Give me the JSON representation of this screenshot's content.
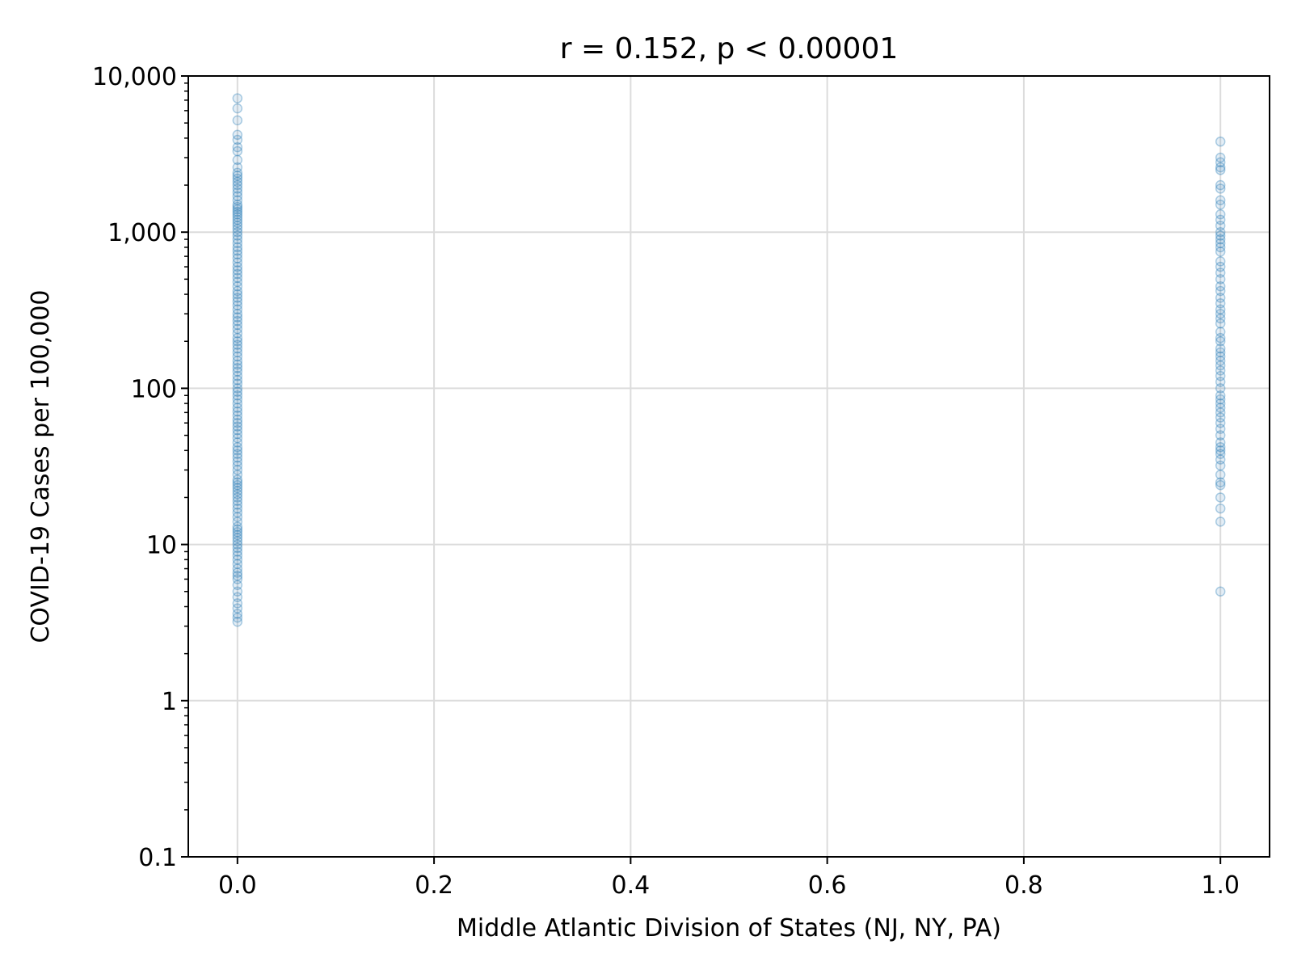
{
  "chart_data": {
    "type": "scatter",
    "title": "r = 0.152, p < 0.00001",
    "xlabel": "Middle Atlantic Division of States (NJ, NY, PA)",
    "ylabel": "COVID-19 Cases per 100,000",
    "xlim": [
      -0.05,
      1.05
    ],
    "ylim": [
      0.1,
      10000
    ],
    "yscale": "log",
    "grid": true,
    "x_ticks": [
      0.0,
      0.2,
      0.4,
      0.6,
      0.8,
      1.0
    ],
    "x_tick_labels": [
      "0.0",
      "0.2",
      "0.4",
      "0.6",
      "0.8",
      "1.0"
    ],
    "y_ticks": [
      0.1,
      1,
      10,
      100,
      1000,
      10000
    ],
    "y_tick_labels": [
      "0.1",
      "1",
      "10",
      "100",
      "1,000",
      "10,000"
    ],
    "colors": {
      "points": "#1f77b4",
      "grid": "#dcdcdc",
      "axes": "#000000"
    },
    "series": [
      {
        "x_group": 0,
        "values": [
          7200,
          6200,
          5200,
          4200,
          3900,
          3500,
          3300,
          2900,
          2600,
          2400,
          2300,
          2200,
          2100,
          2000,
          1900,
          1800,
          1700,
          1600,
          1500,
          1450,
          1400,
          1350,
          1300,
          1250,
          1200,
          1150,
          1100,
          1050,
          1000,
          950,
          900,
          850,
          800,
          760,
          720,
          680,
          640,
          600,
          570,
          540,
          510,
          480,
          450,
          420,
          400,
          380,
          360,
          340,
          320,
          300,
          285,
          270,
          255,
          240,
          225,
          210,
          200,
          190,
          180,
          170,
          160,
          150,
          142,
          135,
          128,
          120,
          113,
          107,
          100,
          95,
          90,
          85,
          80,
          75,
          71,
          67,
          63,
          60,
          57,
          54,
          51,
          48,
          45,
          42,
          40,
          38,
          36,
          34,
          32,
          30,
          28,
          26,
          25,
          24,
          23,
          22,
          21,
          20,
          19,
          18,
          17,
          16,
          15,
          14,
          13,
          12.5,
          12,
          11.5,
          11,
          10.5,
          10,
          9.5,
          9,
          8.5,
          8,
          7.5,
          7,
          6.6,
          6.3,
          6.0,
          5.5,
          5.0,
          4.6,
          4.2,
          3.9,
          3.6,
          3.4,
          3.2
        ]
      },
      {
        "x_group": 1,
        "values": [
          3800,
          3000,
          2800,
          2600,
          2500,
          2000,
          1900,
          1600,
          1500,
          1300,
          1200,
          1100,
          1000,
          950,
          900,
          850,
          800,
          750,
          650,
          600,
          550,
          500,
          450,
          420,
          380,
          350,
          320,
          300,
          280,
          260,
          230,
          210,
          200,
          180,
          170,
          160,
          150,
          140,
          130,
          120,
          110,
          100,
          90,
          85,
          80,
          75,
          70,
          65,
          60,
          55,
          50,
          45,
          42,
          40,
          38,
          35,
          32,
          28,
          25,
          24,
          20,
          17,
          14,
          5
        ]
      }
    ]
  }
}
